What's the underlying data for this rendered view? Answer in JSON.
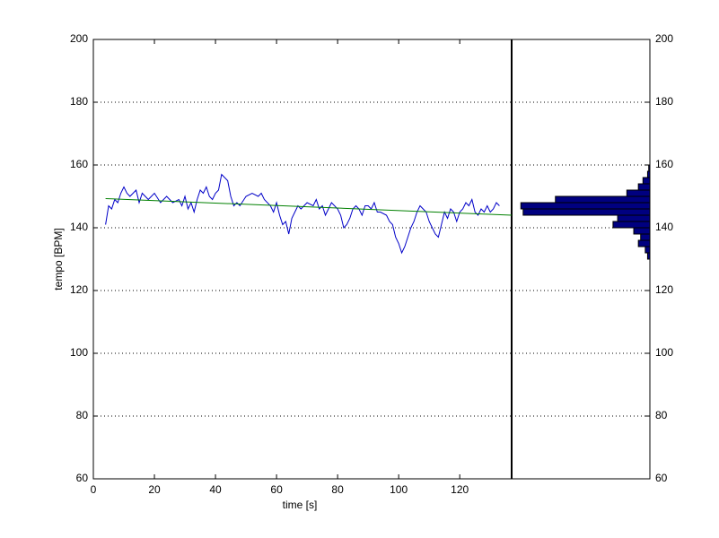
{
  "chart_data": [
    {
      "type": "line",
      "xlabel": "time [s]",
      "ylabel": "tempo [BPM]",
      "xlim": [
        0,
        137
      ],
      "xticks": [
        0,
        20,
        40,
        60,
        80,
        100,
        120
      ],
      "ylim": [
        60,
        200
      ],
      "yticks": [
        60,
        80,
        100,
        120,
        140,
        160,
        180,
        200
      ],
      "grid": true,
      "series": [
        {
          "color": "#0000c8",
          "x": [
            4,
            5,
            6,
            7,
            8,
            9,
            10,
            11,
            12,
            14,
            15,
            16,
            18,
            20,
            22,
            24,
            26,
            28,
            29,
            30,
            31,
            32,
            33,
            34,
            35,
            36,
            37,
            38,
            39,
            40,
            41,
            42,
            43,
            44,
            45,
            46,
            47,
            48,
            50,
            52,
            54,
            55,
            56,
            58,
            59,
            60,
            61,
            62,
            63,
            64,
            65,
            66,
            67,
            68,
            70,
            72,
            73,
            74,
            75,
            76,
            78,
            80,
            81,
            82,
            83,
            84,
            85,
            86,
            87,
            88,
            89,
            90,
            91,
            92,
            93,
            94,
            96,
            97,
            98,
            99,
            100,
            101,
            102,
            103,
            104,
            105,
            106,
            107,
            108,
            109,
            110,
            111,
            112,
            113,
            114,
            115,
            116,
            117,
            118,
            119,
            120,
            121,
            122,
            123,
            124,
            125,
            126,
            127,
            128,
            129,
            130,
            131,
            132,
            133
          ],
          "values": [
            141,
            147,
            146,
            149,
            148,
            151,
            153,
            151,
            150,
            152,
            148,
            151,
            149,
            151,
            148,
            150,
            148,
            149,
            147,
            150,
            146,
            148,
            145,
            149,
            152,
            151,
            153,
            150,
            149,
            151,
            152,
            157,
            156,
            155,
            150,
            147,
            148,
            147,
            150,
            151,
            150,
            151,
            149,
            147,
            145,
            148,
            144,
            141,
            142,
            138,
            143,
            145,
            147,
            146,
            148,
            147,
            149,
            146,
            147,
            144,
            148,
            146,
            144,
            140,
            141,
            143,
            146,
            147,
            146,
            144,
            147,
            147,
            146,
            148,
            145,
            145,
            144,
            142,
            141,
            137,
            135,
            132,
            134,
            137,
            140,
            142,
            145,
            147,
            146,
            145,
            142,
            140,
            138,
            137,
            141,
            145,
            143,
            146,
            145,
            142,
            145,
            146,
            148,
            147,
            149,
            145,
            144,
            146,
            145,
            147,
            145,
            146,
            148,
            147
          ]
        },
        {
          "color": "#008000",
          "x": [
            4,
            137
          ],
          "values": [
            149.3,
            144
          ]
        }
      ]
    },
    {
      "type": "histogram",
      "orientation": "horizontal",
      "color": "#000080",
      "bins": [
        130,
        132,
        134,
        136,
        138,
        140,
        142,
        144,
        146,
        148,
        150,
        152,
        154,
        156,
        158,
        160
      ],
      "counts": [
        2,
        4,
        10,
        8,
        14,
        32,
        28,
        110,
        112,
        82,
        20,
        10,
        6,
        2,
        1
      ],
      "xlim": [
        0,
        120
      ],
      "ylim": [
        60,
        200
      ],
      "yticks": [
        60,
        80,
        100,
        120,
        140,
        160,
        180,
        200
      ],
      "grid": true
    }
  ]
}
